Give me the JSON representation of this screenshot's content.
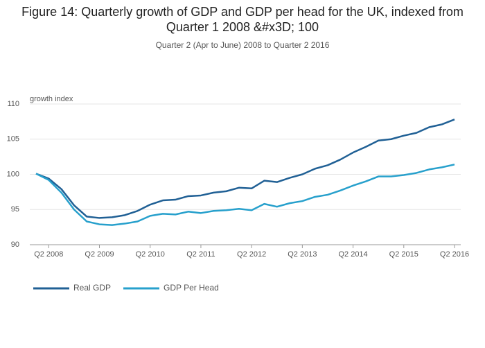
{
  "chart_data": {
    "type": "line",
    "title": "Figure 14: Quarterly growth of GDP and GDP per head for the UK, indexed from Quarter 1 2008 &#x3D; 100",
    "subtitle": "Quarter 2 (Apr to June) 2008 to Quarter 2 2016",
    "y_label": "growth index",
    "categories": [
      null,
      "Q2 2008",
      null,
      null,
      null,
      "Q2 2009",
      null,
      null,
      null,
      "Q2 2010",
      null,
      null,
      null,
      "Q2 2011",
      null,
      null,
      null,
      "Q2 2012",
      null,
      null,
      null,
      "Q2 2013",
      null,
      null,
      null,
      "Q2 2014",
      null,
      null,
      null,
      "Q2 2015",
      null,
      null,
      null,
      "Q2 2016"
    ],
    "series": [
      {
        "name": "Real GDP",
        "color": "#206095",
        "values": [
          100.1,
          99.4,
          97.9,
          95.6,
          94.0,
          93.8,
          93.9,
          94.2,
          94.8,
          95.7,
          96.3,
          96.4,
          96.9,
          97.0,
          97.4,
          97.6,
          98.1,
          98.0,
          99.1,
          98.9,
          99.5,
          100.0,
          100.8,
          101.3,
          102.1,
          103.1,
          103.9,
          104.8,
          105.0,
          105.5,
          105.9,
          106.7,
          107.1,
          107.8
        ]
      },
      {
        "name": "GDP Per Head",
        "color": "#27a0cc",
        "values": [
          100.1,
          99.2,
          97.4,
          95.0,
          93.3,
          92.9,
          92.8,
          93.0,
          93.3,
          94.1,
          94.4,
          94.3,
          94.7,
          94.5,
          94.8,
          94.9,
          95.1,
          94.9,
          95.8,
          95.4,
          95.9,
          96.2,
          96.8,
          97.1,
          97.7,
          98.4,
          99.0,
          99.7,
          99.7,
          99.9,
          100.2,
          100.7,
          101.0,
          101.4
        ]
      }
    ],
    "ylim": [
      90,
      110
    ],
    "yticks": [
      90,
      95,
      100,
      105,
      110
    ],
    "grid": true,
    "legend": "bottom"
  }
}
